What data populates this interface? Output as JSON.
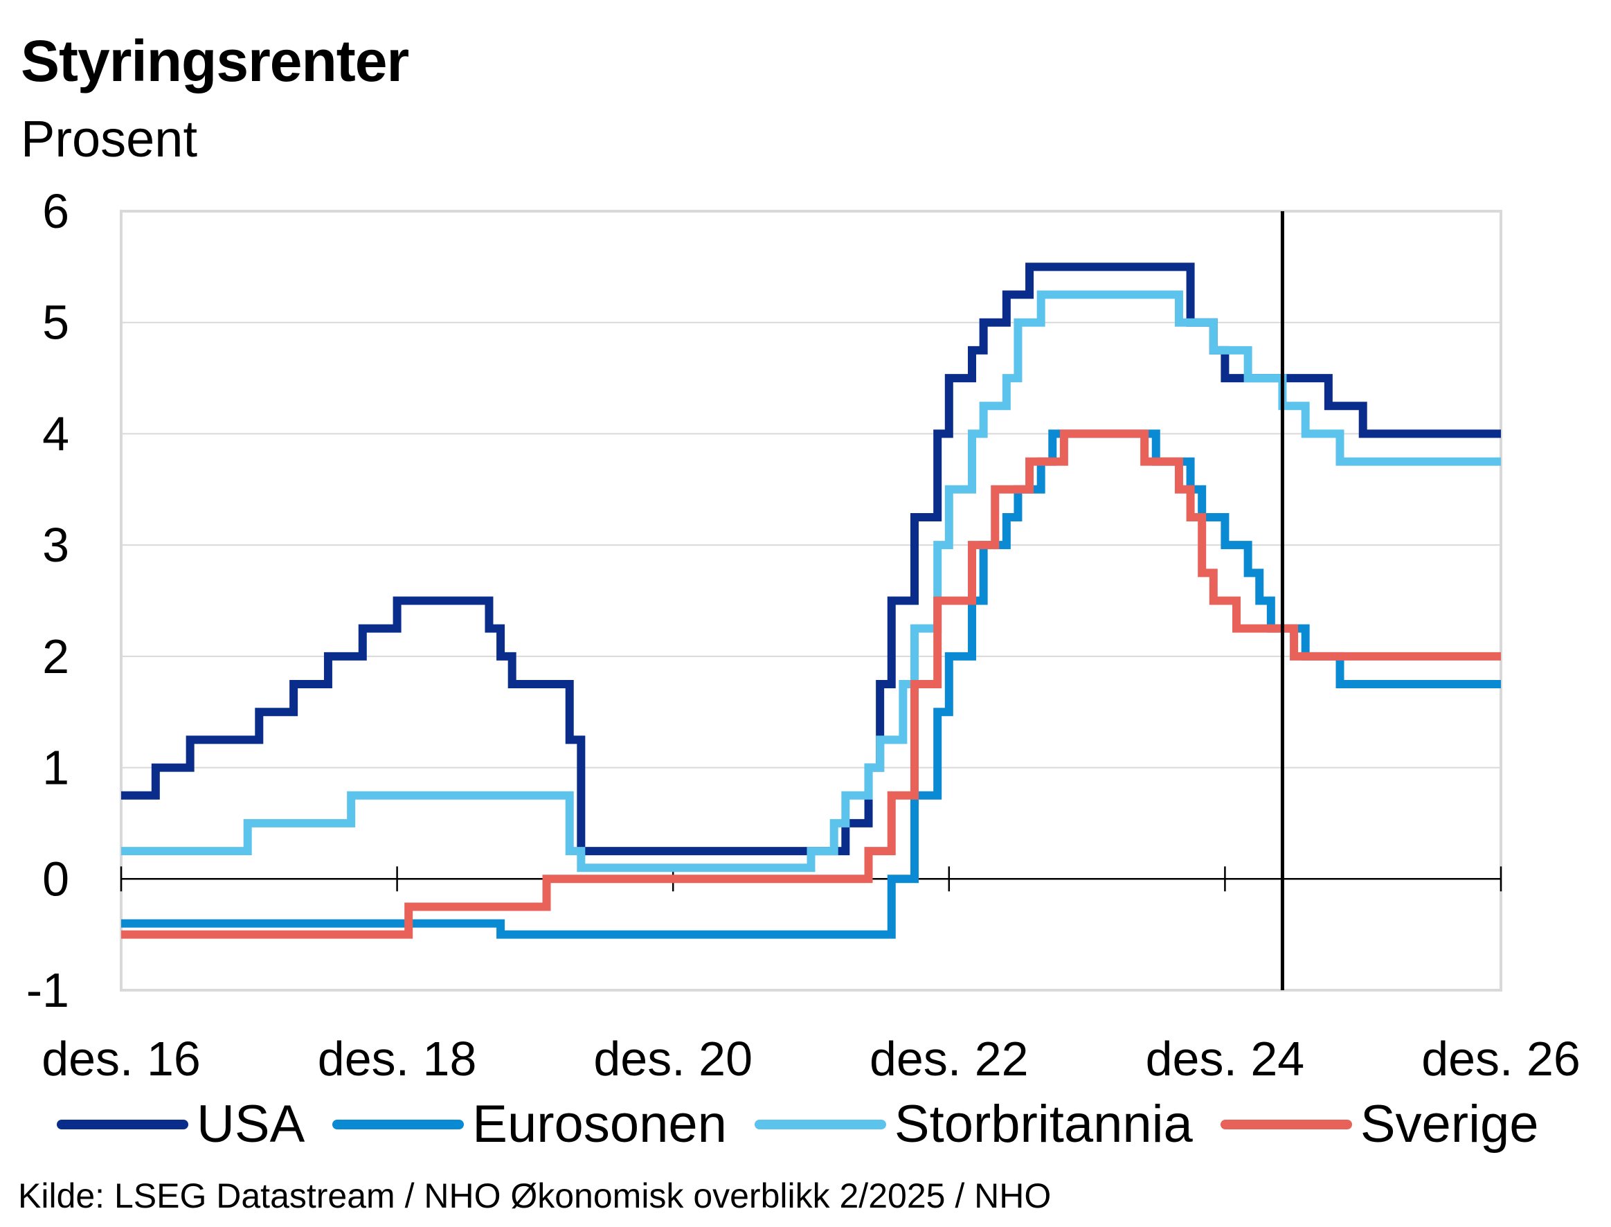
{
  "title": "Styringsrenter",
  "subtitle": "Prosent",
  "source": "Kilde: LSEG Datastream / NHO Økonomisk overblikk 2/2025 / NHO",
  "colors": {
    "usa": "#0a2d8c",
    "eurosonen": "#0a8ad2",
    "storbritannia": "#5cc4ec",
    "sverige": "#e8625a",
    "grid": "#d9d9d9",
    "axis": "#000000"
  },
  "chart_data": {
    "type": "line",
    "step": true,
    "ylim": [
      -1,
      6
    ],
    "yticks": [
      "6",
      "5",
      "4",
      "3",
      "2",
      "1",
      "0",
      "-1"
    ],
    "xlim": [
      "2016-12",
      "2026-12"
    ],
    "xticks": [
      {
        "x": "2016-12",
        "label": "des. 16"
      },
      {
        "x": "2018-12",
        "label": "des. 18"
      },
      {
        "x": "2020-12",
        "label": "des. 20"
      },
      {
        "x": "2022-12",
        "label": "des. 22"
      },
      {
        "x": "2024-12",
        "label": "des. 24"
      },
      {
        "x": "2026-12",
        "label": "des. 26"
      }
    ],
    "forecast_line": "2025-05",
    "series": [
      {
        "name": "USA",
        "color_key": "usa",
        "points": [
          [
            "2016-12",
            0.75
          ],
          [
            "2017-03",
            1.0
          ],
          [
            "2017-06",
            1.25
          ],
          [
            "2017-12",
            1.5
          ],
          [
            "2018-03",
            1.75
          ],
          [
            "2018-06",
            2.0
          ],
          [
            "2018-09",
            2.25
          ],
          [
            "2018-12",
            2.5
          ],
          [
            "2019-08",
            2.25
          ],
          [
            "2019-09",
            2.0
          ],
          [
            "2019-10",
            1.75
          ],
          [
            "2020-03",
            1.25
          ],
          [
            "2020-04",
            0.25
          ],
          [
            "2022-03",
            0.5
          ],
          [
            "2022-05",
            1.0
          ],
          [
            "2022-06",
            1.75
          ],
          [
            "2022-07",
            2.5
          ],
          [
            "2022-09",
            3.25
          ],
          [
            "2022-11",
            4.0
          ],
          [
            "2022-12",
            4.5
          ],
          [
            "2023-02",
            4.75
          ],
          [
            "2023-03",
            5.0
          ],
          [
            "2023-05",
            5.25
          ],
          [
            "2023-07",
            5.5
          ],
          [
            "2024-09",
            5.0
          ],
          [
            "2024-11",
            4.75
          ],
          [
            "2024-12",
            4.5
          ],
          [
            "2025-09",
            4.25
          ],
          [
            "2025-12",
            4.0
          ],
          [
            "2026-12",
            4.0
          ]
        ]
      },
      {
        "name": "Eurosonen",
        "color_key": "eurosonen",
        "points": [
          [
            "2016-12",
            -0.4
          ],
          [
            "2019-09",
            -0.5
          ],
          [
            "2022-07",
            0.0
          ],
          [
            "2022-09",
            0.75
          ],
          [
            "2022-11",
            1.5
          ],
          [
            "2022-12",
            2.0
          ],
          [
            "2023-02",
            2.5
          ],
          [
            "2023-03",
            3.0
          ],
          [
            "2023-05",
            3.25
          ],
          [
            "2023-06",
            3.5
          ],
          [
            "2023-08",
            3.75
          ],
          [
            "2023-09",
            4.0
          ],
          [
            "2024-06",
            3.75
          ],
          [
            "2024-09",
            3.5
          ],
          [
            "2024-10",
            3.25
          ],
          [
            "2024-12",
            3.0
          ],
          [
            "2025-02",
            2.75
          ],
          [
            "2025-03",
            2.5
          ],
          [
            "2025-04",
            2.25
          ],
          [
            "2025-07",
            2.0
          ],
          [
            "2025-10",
            1.75
          ],
          [
            "2026-12",
            1.75
          ]
        ]
      },
      {
        "name": "Storbritannia",
        "color_key": "storbritannia",
        "points": [
          [
            "2016-12",
            0.25
          ],
          [
            "2017-11",
            0.5
          ],
          [
            "2018-08",
            0.75
          ],
          [
            "2020-03",
            0.25
          ],
          [
            "2020-04",
            0.1
          ],
          [
            "2021-12",
            0.25
          ],
          [
            "2022-02",
            0.5
          ],
          [
            "2022-03",
            0.75
          ],
          [
            "2022-05",
            1.0
          ],
          [
            "2022-06",
            1.25
          ],
          [
            "2022-08",
            1.75
          ],
          [
            "2022-09",
            2.25
          ],
          [
            "2022-11",
            3.0
          ],
          [
            "2022-12",
            3.5
          ],
          [
            "2023-02",
            4.0
          ],
          [
            "2023-03",
            4.25
          ],
          [
            "2023-05",
            4.5
          ],
          [
            "2023-06",
            5.0
          ],
          [
            "2023-08",
            5.25
          ],
          [
            "2024-08",
            5.0
          ],
          [
            "2024-11",
            4.75
          ],
          [
            "2025-02",
            4.5
          ],
          [
            "2025-05",
            4.25
          ],
          [
            "2025-07",
            4.0
          ],
          [
            "2025-10",
            3.75
          ],
          [
            "2026-12",
            3.75
          ]
        ]
      },
      {
        "name": "Sverige",
        "color_key": "sverige",
        "points": [
          [
            "2016-12",
            -0.5
          ],
          [
            "2019-01",
            -0.25
          ],
          [
            "2020-01",
            0.0
          ],
          [
            "2022-05",
            0.25
          ],
          [
            "2022-07",
            0.75
          ],
          [
            "2022-09",
            1.75
          ],
          [
            "2022-11",
            2.5
          ],
          [
            "2023-02",
            3.0
          ],
          [
            "2023-04",
            3.5
          ],
          [
            "2023-07",
            3.75
          ],
          [
            "2023-10",
            4.0
          ],
          [
            "2024-05",
            3.75
          ],
          [
            "2024-08",
            3.5
          ],
          [
            "2024-09",
            3.25
          ],
          [
            "2024-10",
            2.75
          ],
          [
            "2024-11",
            2.5
          ],
          [
            "2025-01",
            2.25
          ],
          [
            "2025-06",
            2.0
          ],
          [
            "2026-12",
            2.0
          ]
        ]
      }
    ]
  }
}
